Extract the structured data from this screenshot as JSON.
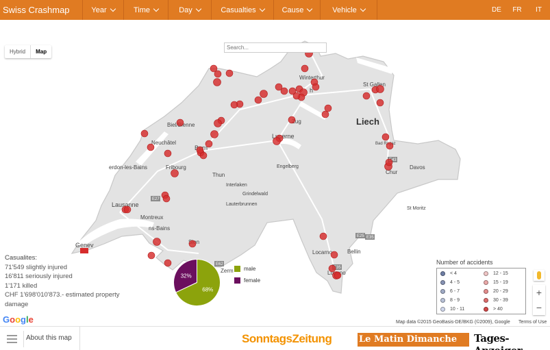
{
  "brand": "Swiss Crashmap",
  "nav": [
    "Year",
    "Time",
    "Day",
    "Casualties",
    "Cause",
    "Vehicle"
  ],
  "languages": [
    "DE",
    "FR",
    "IT"
  ],
  "map_type": {
    "hybrid": "Hybrid",
    "map": "Map"
  },
  "search": {
    "placeholder": "Search..."
  },
  "place_labels": [
    "Winterthur",
    "St Gallen",
    "Liech",
    "Biel/Bienne",
    "Neuchâtel",
    "Bern",
    "Lucerne",
    "Zug",
    "Fribourg",
    "Thun",
    "Interlaken",
    "Engelberg",
    "Grindelwald",
    "Lauterbrunnen",
    "Lausanne",
    "Montreux",
    "Sion",
    "Zerm",
    "Genev",
    "Chur",
    "Davos",
    "Bad Ragaz",
    "St Moritz",
    "Locarno",
    "Lugano",
    "Bellin",
    "erdon-les-Bains",
    "ns-Bains",
    "h"
  ],
  "road_shields": [
    "E27",
    "E25",
    "E62",
    "E43",
    "E35",
    "E35"
  ],
  "casualties": {
    "title": "Casualites:",
    "lines": [
      "71'549 slightly injured",
      "16'811 seriously injured",
      "1'171 killed",
      "CHF 1'698'010'873.- estimated property damage"
    ]
  },
  "gender_pie": {
    "segments": [
      {
        "label": "male",
        "percent": 68,
        "display": "68%",
        "color": "#8ca30c"
      },
      {
        "label": "female",
        "percent": 32,
        "display": "32%",
        "color": "#6b0f5e"
      }
    ]
  },
  "accidents_legend": {
    "title": "Number of accidents",
    "items": [
      {
        "label": "< 4",
        "color": "#6f7fa6"
      },
      {
        "label": "4 - 5",
        "color": "#8793b4"
      },
      {
        "label": "6 - 7",
        "color": "#a0abc6"
      },
      {
        "label": "8 - 9",
        "color": "#b9c2d8"
      },
      {
        "label": "10 - 11",
        "color": "#d0d7ec"
      },
      {
        "label": "12 - 15",
        "color": "#f0c6c6"
      },
      {
        "label": "15 - 19",
        "color": "#eba9a9"
      },
      {
        "label": "20 - 29",
        "color": "#e48d8d"
      },
      {
        "label": "30 - 39",
        "color": "#dd6d6d"
      },
      {
        "label": "> 40",
        "color": "#d24848"
      }
    ]
  },
  "google_logo": "Google",
  "attribution": "Map data ©2015 GeoBasis-DE/BKG (©2009), Google",
  "terms": "Terms of Use",
  "about": "About this map",
  "logos": [
    "SonntagsZeitung",
    "Le Matin Dimanche",
    "Tages-Anzeiger"
  ],
  "colors": {
    "accent": "#e07b22",
    "marker": "#d62c2c"
  }
}
